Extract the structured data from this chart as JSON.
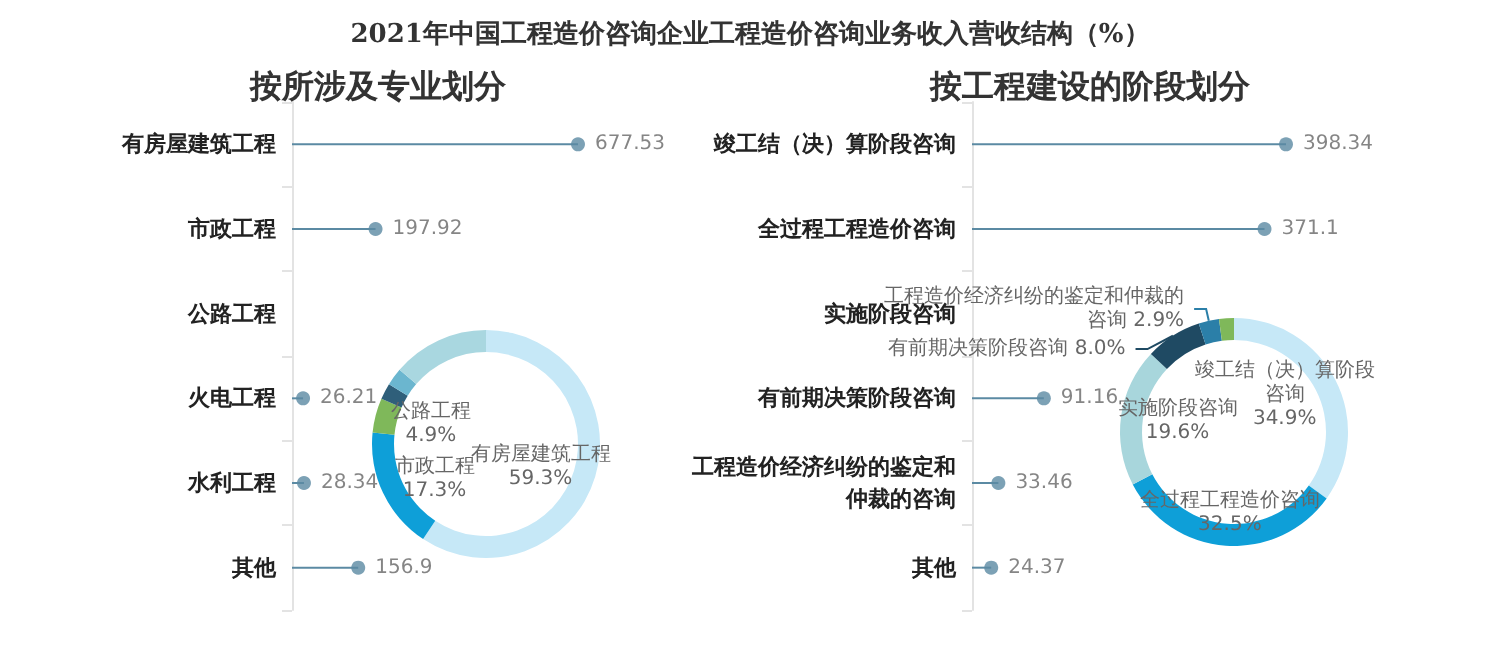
{
  "chart_data": [
    {
      "type": "lollipop",
      "orientation": "horizontal",
      "title": "2021年中国工程造价咨询企业工程造价咨询业务收入营收结构（%）",
      "subtitle": "按所涉及专业划分",
      "categories": [
        "有房屋建筑工程",
        "市政工程",
        "公路工程",
        "火电工程",
        "水利工程",
        "其他"
      ],
      "values": [
        677.53,
        197.92,
        null,
        26.21,
        28.34,
        156.9
      ],
      "color": "#5b8aa3",
      "data_labels": true
    },
    {
      "type": "donut",
      "categories": [
        "有房屋建筑工程",
        "市政工程",
        "公路工程",
        null,
        null,
        null
      ],
      "values": [
        59.3,
        17.3,
        4.9,
        2.3,
        2.5,
        13.7
      ],
      "colors": [
        "#c6e8f7",
        "#0e9fd8",
        "#7fb85a",
        "#2f5f7a",
        "#6bb6cf",
        "#a9d7e0"
      ],
      "value_labels": [
        "59.3%",
        "17.3%",
        "4.9%",
        null,
        null,
        null
      ]
    },
    {
      "type": "lollipop",
      "orientation": "horizontal",
      "title": "按工程建设的阶段划分",
      "categories": [
        "竣工结（决）算阶段咨询",
        "全过程工程造价咨询",
        "实施阶段咨询",
        "有前期决策阶段咨询",
        "工程造价经济纠纷的鉴定和仲裁的咨询",
        "其他"
      ],
      "values": [
        398.34,
        371.1,
        null,
        91.16,
        33.46,
        24.37
      ],
      "color": "#5b8aa3",
      "data_labels": true
    },
    {
      "type": "donut",
      "categories": [
        "竣工结（决）算阶段咨询",
        "全过程工程造价咨询",
        "实施阶段咨询",
        "有前期决策阶段咨询",
        "工程造价经济纠纷的鉴定和仲裁的咨询",
        null
      ],
      "values": [
        34.9,
        32.5,
        19.6,
        8.0,
        2.9,
        2.1
      ],
      "colors": [
        "#c6e8f7",
        "#0e9fd8",
        "#a8d6dc",
        "#1f4a63",
        "#2b7fa8",
        "#7fb85a"
      ],
      "value_labels": [
        "34.9%",
        "32.5%",
        "19.6%",
        "8.0%",
        "2.9%",
        null
      ]
    }
  ]
}
